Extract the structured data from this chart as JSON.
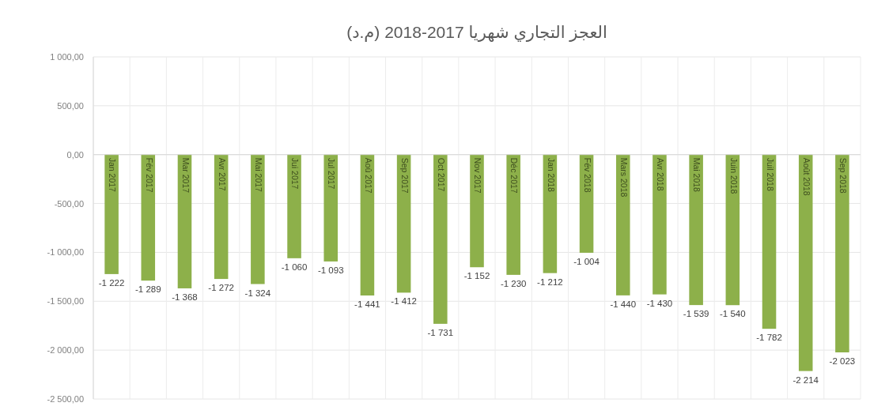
{
  "chart_data": {
    "type": "bar",
    "title": "العجز التجاري شهريا 2017-2018 (م.د)",
    "categories": [
      "Jan 2017",
      "Fév 2017",
      "Mar 2017",
      "Avr 2017",
      "Mai 2017",
      "Jui 2017",
      "Jul 2017",
      "Aoû 2017",
      "Sep 2017",
      "Oct 2017",
      "Nov 2017",
      "Déc 2017",
      "Jan 2018",
      "Fév 2018",
      "Mars 2018",
      "Avr 2018",
      "Mai 2018",
      "Juin 2018",
      "Juil 2018",
      "Août 2018",
      "Sep 2018"
    ],
    "values": [
      -1222,
      -1289,
      -1368,
      -1272,
      -1324,
      -1060,
      -1093,
      -1441,
      -1412,
      -1731,
      -1152,
      -1230,
      -1212,
      -1004,
      -1440,
      -1430,
      -1539,
      -1540,
      -1782,
      -2214,
      -2023
    ],
    "value_labels": [
      "-1 222",
      "-1 289",
      "-1 368",
      "-1 272",
      "-1 324",
      "-1 060",
      "-1 093",
      "-1 441",
      "-1 412",
      "-1 731",
      "-1 152",
      "-1 230",
      "-1 212",
      "-1 004",
      "-1 440",
      "-1 430",
      "-1 539",
      "-1 540",
      "-1 782",
      "-2 214",
      "-2 023"
    ],
    "color": "#8db04a",
    "ylim": [
      -2500,
      1000
    ],
    "yticks": [
      {
        "value": 1000,
        "label": "1 000,00"
      },
      {
        "value": 500,
        "label": "500,00"
      },
      {
        "value": 0,
        "label": "0,00"
      },
      {
        "value": -500,
        "label": "-500,00"
      },
      {
        "value": -1000,
        "label": "-1 000,00"
      },
      {
        "value": -1500,
        "label": "-1 500,00"
      },
      {
        "value": -2000,
        "label": "-2 000,00"
      },
      {
        "value": -2500,
        "label": "-2 500,00"
      }
    ],
    "grid": true
  }
}
